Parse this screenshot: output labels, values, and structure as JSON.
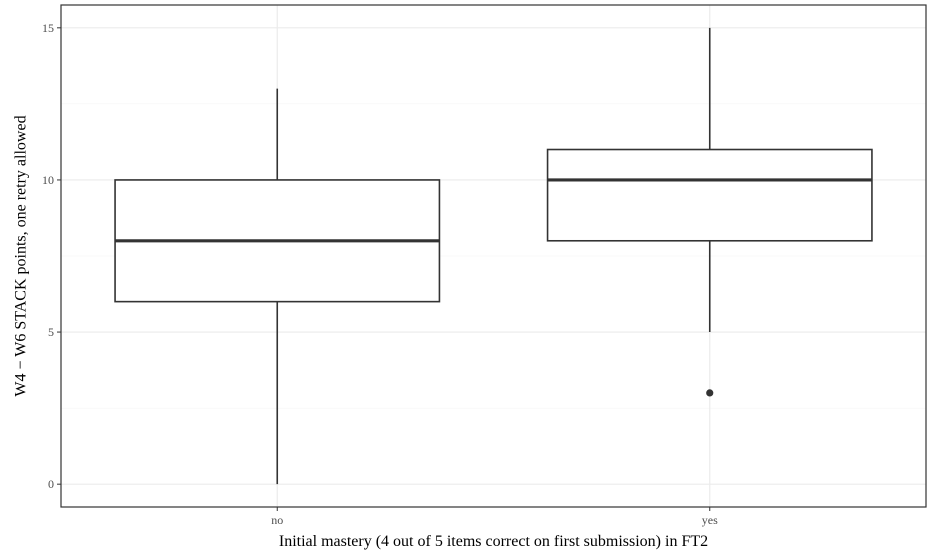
{
  "chart_data": {
    "type": "boxplot",
    "xlabel": "Initial mastery (4 out of 5 items correct on first submission) in FT2",
    "ylabel": "W4 − W6 STACK points, one retry allowed",
    "ylim": [
      -0.75,
      15.75
    ],
    "yticks": [
      0,
      5,
      10,
      15
    ],
    "yticks_labels": [
      "0",
      "5",
      "10",
      "15"
    ],
    "categories": [
      "no",
      "yes"
    ],
    "boxes": [
      {
        "category": "no",
        "whisker_low": 0,
        "q1": 6,
        "median": 8,
        "q3": 10,
        "whisker_high": 13,
        "outliers": []
      },
      {
        "category": "yes",
        "whisker_low": 5,
        "q1": 8,
        "median": 10,
        "q3": 11,
        "whisker_high": 15,
        "outliers": [
          3
        ]
      }
    ],
    "grid": true,
    "theme": "bw",
    "colors": {
      "box_line": "#333333",
      "box_fill": "#ffffff",
      "grid_major": "#ebebeb",
      "grid_minor": "#f2f2f2",
      "panel_border": "#333333",
      "tick_text": "#4d4d4d"
    }
  }
}
